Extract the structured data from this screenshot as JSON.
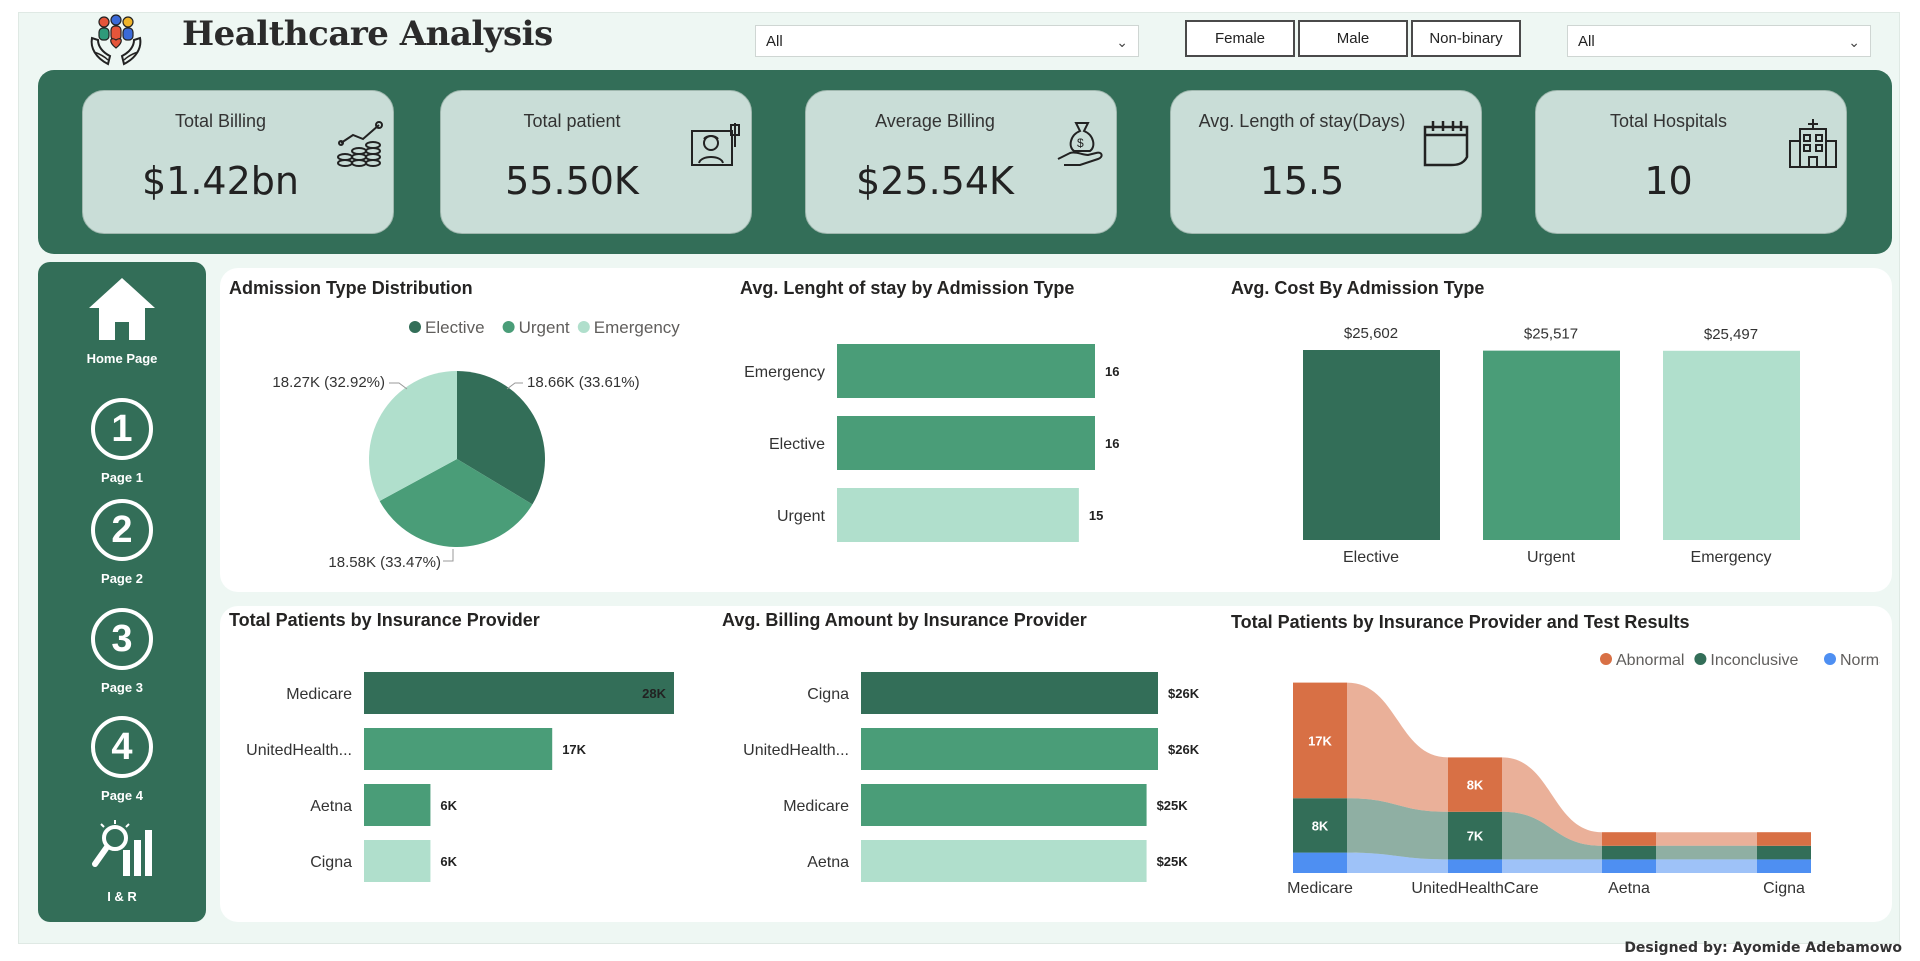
{
  "header": {
    "title": "Healthcare Analysis",
    "logo_icon": "caring-hands-people-icon"
  },
  "filters": {
    "dropdown_left": "All",
    "dropdown_right": "All",
    "gender_buttons": [
      "Female",
      "Male",
      "Non-binary"
    ]
  },
  "kpis": [
    {
      "label": "Total Billing",
      "value": "$1.42bn",
      "icon": "coins-growth-chart-icon"
    },
    {
      "label": "Total patient",
      "value": "55.50K",
      "icon": "patient-bed-icon"
    },
    {
      "label": "Average Billing",
      "value": "$25.54K",
      "icon": "money-bag-hand-icon"
    },
    {
      "label": "Avg. Length of stay(Days)",
      "value": "15.5",
      "icon": "calendar-icon"
    },
    {
      "label": "Total Hospitals",
      "value": "10",
      "icon": "hospital-building-icon"
    }
  ],
  "nav": [
    {
      "label": "Home Page",
      "icon": "home-icon"
    },
    {
      "label": "Page 1",
      "number": "1"
    },
    {
      "label": "Page 2",
      "number": "2"
    },
    {
      "label": "Page 3",
      "number": "3"
    },
    {
      "label": "Page 4",
      "number": "4"
    },
    {
      "label": "I & R",
      "icon": "insights-chart-icon"
    }
  ],
  "colors": {
    "dark": "#336e58",
    "mid": "#4a9d78",
    "light": "#b0dfcc",
    "abnormal": "#d87045",
    "normal": "#4e8ff2"
  },
  "credit": "Designed by: Ayomide Adebamowo",
  "chart_data": [
    {
      "type": "pie",
      "title": "Admission Type Distribution",
      "legend": [
        "Elective",
        "Urgent",
        "Emergency"
      ],
      "values": [
        18.66,
        18.58,
        18.27
      ],
      "labels": [
        "18.66K (33.61%)",
        "18.58K (33.47%)",
        "18.27K (32.92%)"
      ]
    },
    {
      "type": "bar",
      "orientation": "horizontal",
      "title": "Avg. Lenght of stay by Admission Type",
      "categories": [
        "Emergency",
        "Elective",
        "Urgent"
      ],
      "values": [
        16,
        16,
        15
      ],
      "labels": [
        "16",
        "16",
        "15"
      ]
    },
    {
      "type": "bar",
      "title": "Avg. Cost By Admission Type",
      "categories": [
        "Elective",
        "Urgent",
        "Emergency"
      ],
      "values": [
        25602,
        25517,
        25497
      ],
      "labels": [
        "$25,602",
        "$25,517",
        "$25,497"
      ]
    },
    {
      "type": "bar",
      "orientation": "horizontal",
      "title": "Total Patients by Insurance Provider",
      "categories": [
        "Medicare",
        "UnitedHealth...",
        "Aetna",
        "Cigna"
      ],
      "values": [
        28,
        17,
        6,
        6
      ],
      "labels": [
        "28K",
        "17K",
        "6K",
        "6K"
      ]
    },
    {
      "type": "bar",
      "orientation": "horizontal",
      "title": "Avg. Billing Amount by Insurance Provider",
      "categories": [
        "Cigna",
        "UnitedHealth...",
        "Medicare",
        "Aetna"
      ],
      "values": [
        26,
        26,
        25,
        25
      ],
      "labels": [
        "$26K",
        "$26K",
        "$25K",
        "$25K"
      ]
    },
    {
      "type": "area",
      "subtype": "ribbon",
      "title": "Total Patients by Insurance Provider and Test Results",
      "categories": [
        "Medicare",
        "UnitedHealthCare",
        "Aetna",
        "Cigna"
      ],
      "series": [
        {
          "name": "Abnormal",
          "values": [
            17,
            8,
            2,
            2
          ],
          "labels": [
            "17K",
            "8K",
            "",
            ""
          ]
        },
        {
          "name": "Inconclusive",
          "values": [
            8,
            7,
            2,
            2
          ],
          "labels": [
            "8K",
            "7K",
            "",
            ""
          ]
        },
        {
          "name": "Normal",
          "values": [
            3,
            2,
            2,
            2
          ],
          "labels": [
            "",
            "",
            "",
            ""
          ]
        }
      ]
    }
  ]
}
